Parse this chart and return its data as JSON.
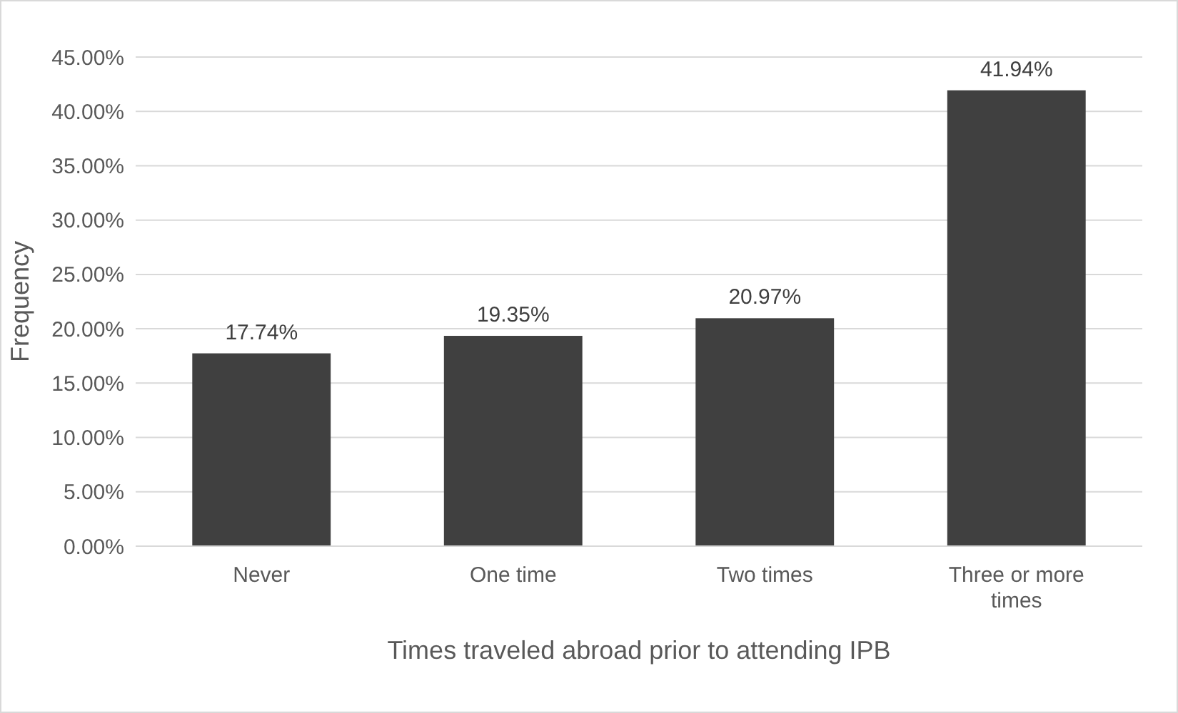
{
  "chart_data": {
    "type": "bar",
    "xlabel": "Times traveled abroad prior to attending IPB",
    "ylabel": "Frequency",
    "categories": [
      "Never",
      "One time",
      "Two times",
      "Three or more times"
    ],
    "values": [
      17.74,
      19.35,
      20.97,
      41.94
    ],
    "value_labels": [
      "17.74%",
      "19.35%",
      "20.97%",
      "41.94%"
    ],
    "color": "#404040",
    "ylim": [
      0,
      45
    ],
    "yticks": [
      {
        "value": 0,
        "label": "0.00%"
      },
      {
        "value": 5,
        "label": "5.00%"
      },
      {
        "value": 10,
        "label": "10.00%"
      },
      {
        "value": 15,
        "label": "15.00%"
      },
      {
        "value": 20,
        "label": "20.00%"
      },
      {
        "value": 25,
        "label": "25.00%"
      },
      {
        "value": 30,
        "label": "30.00%"
      },
      {
        "value": 35,
        "label": "35.00%"
      },
      {
        "value": 40,
        "label": "40.00%"
      },
      {
        "value": 45,
        "label": "45.00%"
      }
    ],
    "grid": "y"
  }
}
